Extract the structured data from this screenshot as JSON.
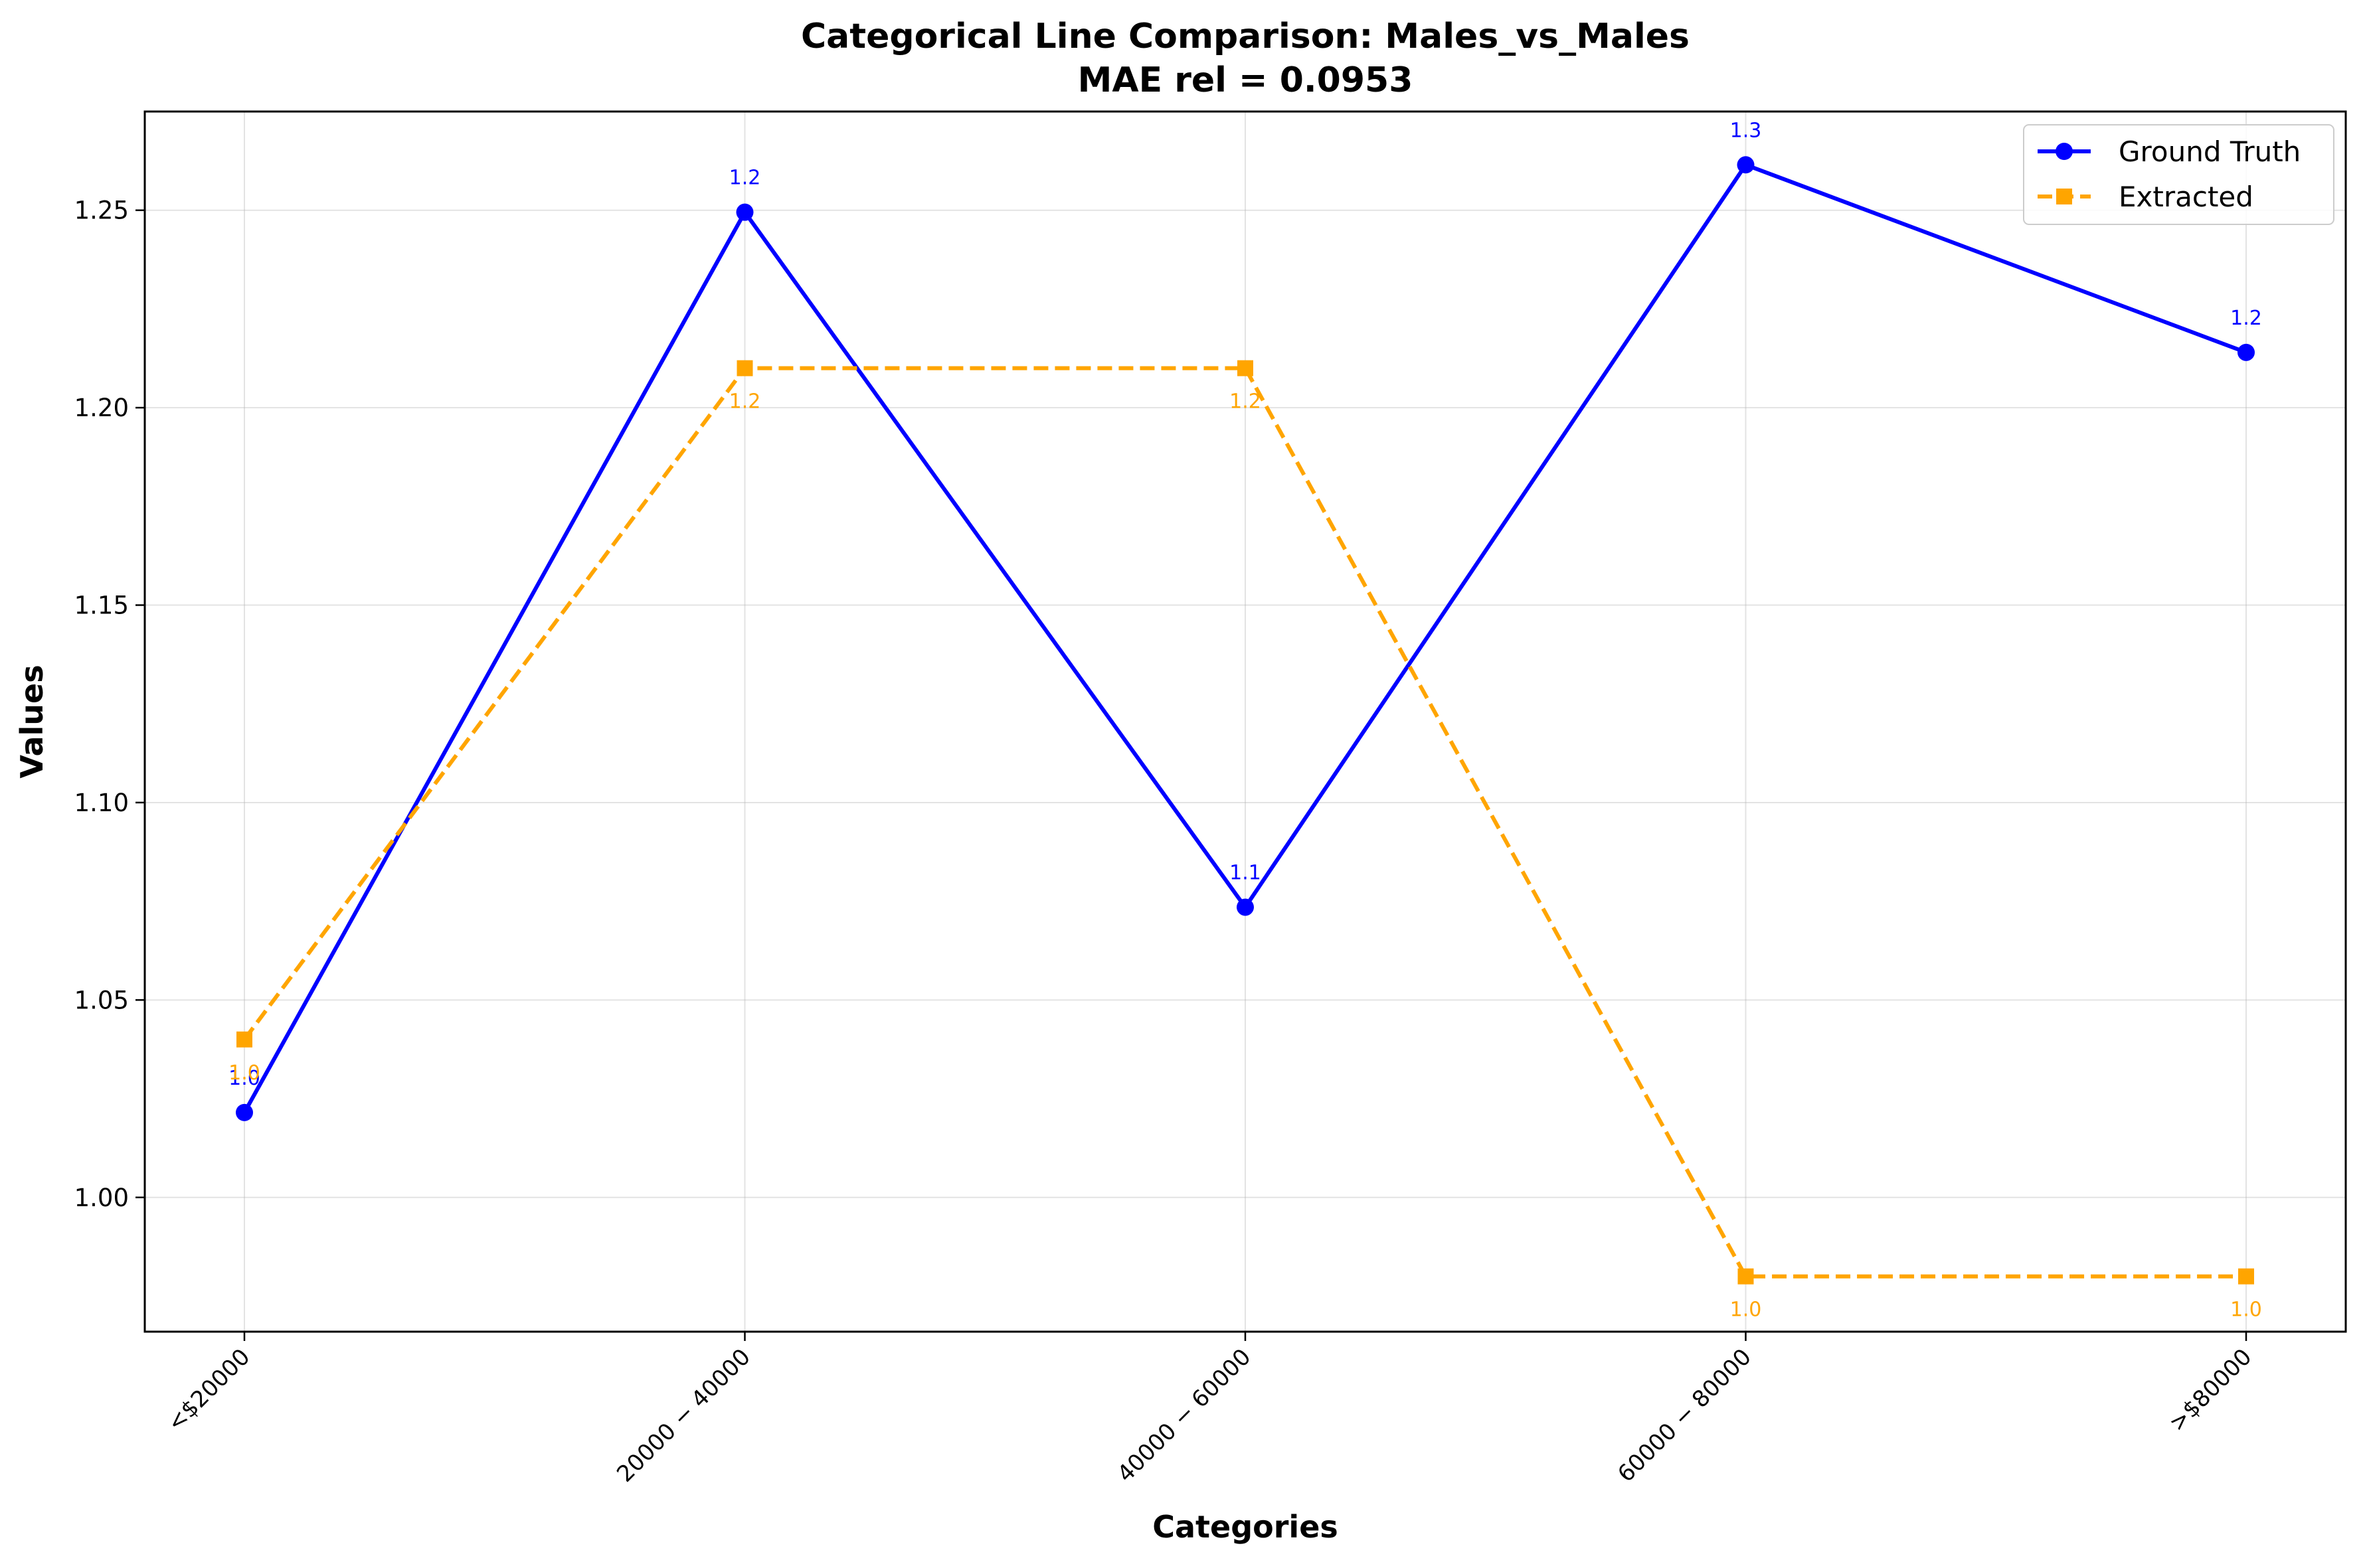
{
  "chart_data": {
    "type": "line",
    "title": "Categorical Line Comparison: Males_vs_Males",
    "subtitle": "MAE rel = 0.0953",
    "xlabel": "Categories",
    "ylabel": "Values",
    "categories": [
      "<$20000",
      "$20000-$40000",
      "$40000-$60000",
      "$60000-$80000",
      ">$80000"
    ],
    "category_tick_labels": [
      "<$20000",
      "20000 − 40000",
      "40000 − 60000",
      "60000 − 80000",
      ">$80000"
    ],
    "ylim": [
      0.966,
      1.275
    ],
    "yticks": [
      1.0,
      1.05,
      1.1,
      1.15,
      1.2,
      1.25
    ],
    "ytick_labels": [
      "1.00",
      "1.05",
      "1.10",
      "1.15",
      "1.20",
      "1.25"
    ],
    "grid": true,
    "legend_position": "top-right",
    "series": [
      {
        "name": "Ground Truth",
        "color": "#0000ff",
        "line_style": "solid",
        "marker": "circle",
        "values": [
          1.0215,
          1.2495,
          1.0735,
          1.2615,
          1.214
        ],
        "labels": [
          "1.0",
          "1.2",
          "1.1",
          "1.3",
          "1.2"
        ]
      },
      {
        "name": "Extracted",
        "color": "#ffa500",
        "line_style": "dashed",
        "marker": "square",
        "values": [
          1.04,
          1.21,
          1.21,
          0.98,
          0.98
        ],
        "labels": [
          "1.0",
          "1.2",
          "1.2",
          "1.0",
          "1.0"
        ]
      }
    ]
  }
}
